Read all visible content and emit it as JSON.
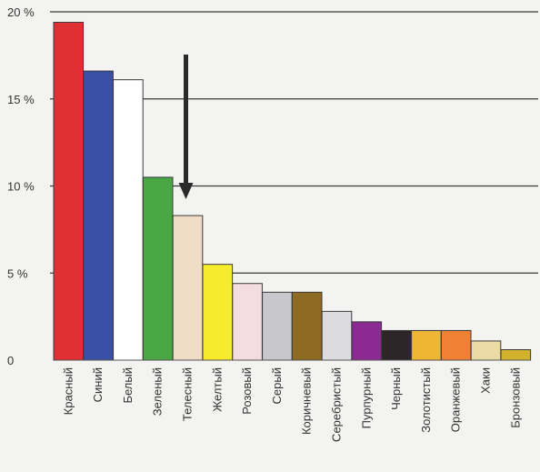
{
  "chart_data": {
    "type": "bar",
    "title": "",
    "xlabel": "",
    "ylabel": "",
    "ylim": [
      0,
      20
    ],
    "yticks": [
      {
        "value": 0,
        "label": "0"
      },
      {
        "value": 5,
        "label": "5 %"
      },
      {
        "value": 10,
        "label": "10 %"
      },
      {
        "value": 15,
        "label": "15 %"
      },
      {
        "value": 20,
        "label": "20 %"
      }
    ],
    "grid": true,
    "categories": [
      "Красный",
      "Синий",
      "Белый",
      "Зеленый",
      "Телесный",
      "Желтый",
      "Розовый",
      "Серый",
      "Коричневый",
      "Серебристый",
      "Пурпурный",
      "Черный",
      "Золотистый",
      "Оранжевый",
      "Хаки",
      "Бронзовый"
    ],
    "values": [
      19.4,
      16.6,
      16.1,
      10.5,
      8.3,
      5.5,
      4.4,
      3.9,
      3.9,
      2.8,
      2.2,
      1.7,
      1.7,
      1.7,
      1.1,
      0.6
    ],
    "colors": [
      "#e03036",
      "#3a4fa6",
      "#ffffff",
      "#4aa844",
      "#f1dcc6",
      "#f6ec2c",
      "#f4dde2",
      "#c8c8cc",
      "#8e6a23",
      "#dcdce0",
      "#8b2a92",
      "#2c2628",
      "#efb534",
      "#ef8034",
      "#ecdba4",
      "#d2b22c"
    ],
    "annotation": {
      "type": "arrow",
      "target_category": "Телесный"
    }
  }
}
